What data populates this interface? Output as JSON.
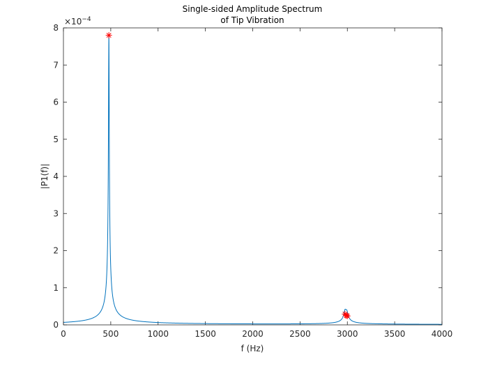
{
  "chart_data": {
    "type": "line",
    "title": "Single-sided Amplitude Spectrum",
    "subtitle": "of Tip Vibration",
    "xlabel": "f (Hz)",
    "ylabel": "|P1(f)|",
    "xlim": [
      0,
      4000
    ],
    "ylim": [
      0,
      0.0008
    ],
    "y_exponent_label": "×10",
    "y_exponent_power": "−4",
    "y_exponent_value": -4,
    "x_ticks": [
      0,
      500,
      1000,
      1500,
      2000,
      2500,
      3000,
      3500,
      4000
    ],
    "x_tick_labels": [
      "0",
      "500",
      "1000",
      "1500",
      "2000",
      "2500",
      "3000",
      "3500",
      "4000"
    ],
    "y_ticks": [
      0,
      0.0001,
      0.0002,
      0.0003,
      0.0004,
      0.0005,
      0.0006,
      0.0007,
      0.0008
    ],
    "y_tick_labels": [
      "0",
      "1",
      "2",
      "3",
      "4",
      "5",
      "6",
      "7",
      "8"
    ],
    "grid": false,
    "box": true,
    "series": [
      {
        "style": "line",
        "color": "#0072BD",
        "model": "resonance",
        "peaks": [
          {
            "f": 480,
            "amplitude": 0.00078,
            "half_width": 4
          },
          {
            "f": 2975,
            "amplitude": 2.8e-05,
            "half_width": 12
          },
          {
            "f": 2995,
            "amplitude": 2.4e-05,
            "half_width": 12
          }
        ],
        "f_range": [
          0,
          4000
        ]
      },
      {
        "style": "markers",
        "marker": "*",
        "color": "#FF0000",
        "points": [
          {
            "x": 480,
            "y": 0.00078
          },
          {
            "x": 2975,
            "y": 2.9e-05
          },
          {
            "x": 2990,
            "y": 2.5e-05
          },
          {
            "x": 3000,
            "y": 2.4e-05
          }
        ]
      }
    ]
  }
}
